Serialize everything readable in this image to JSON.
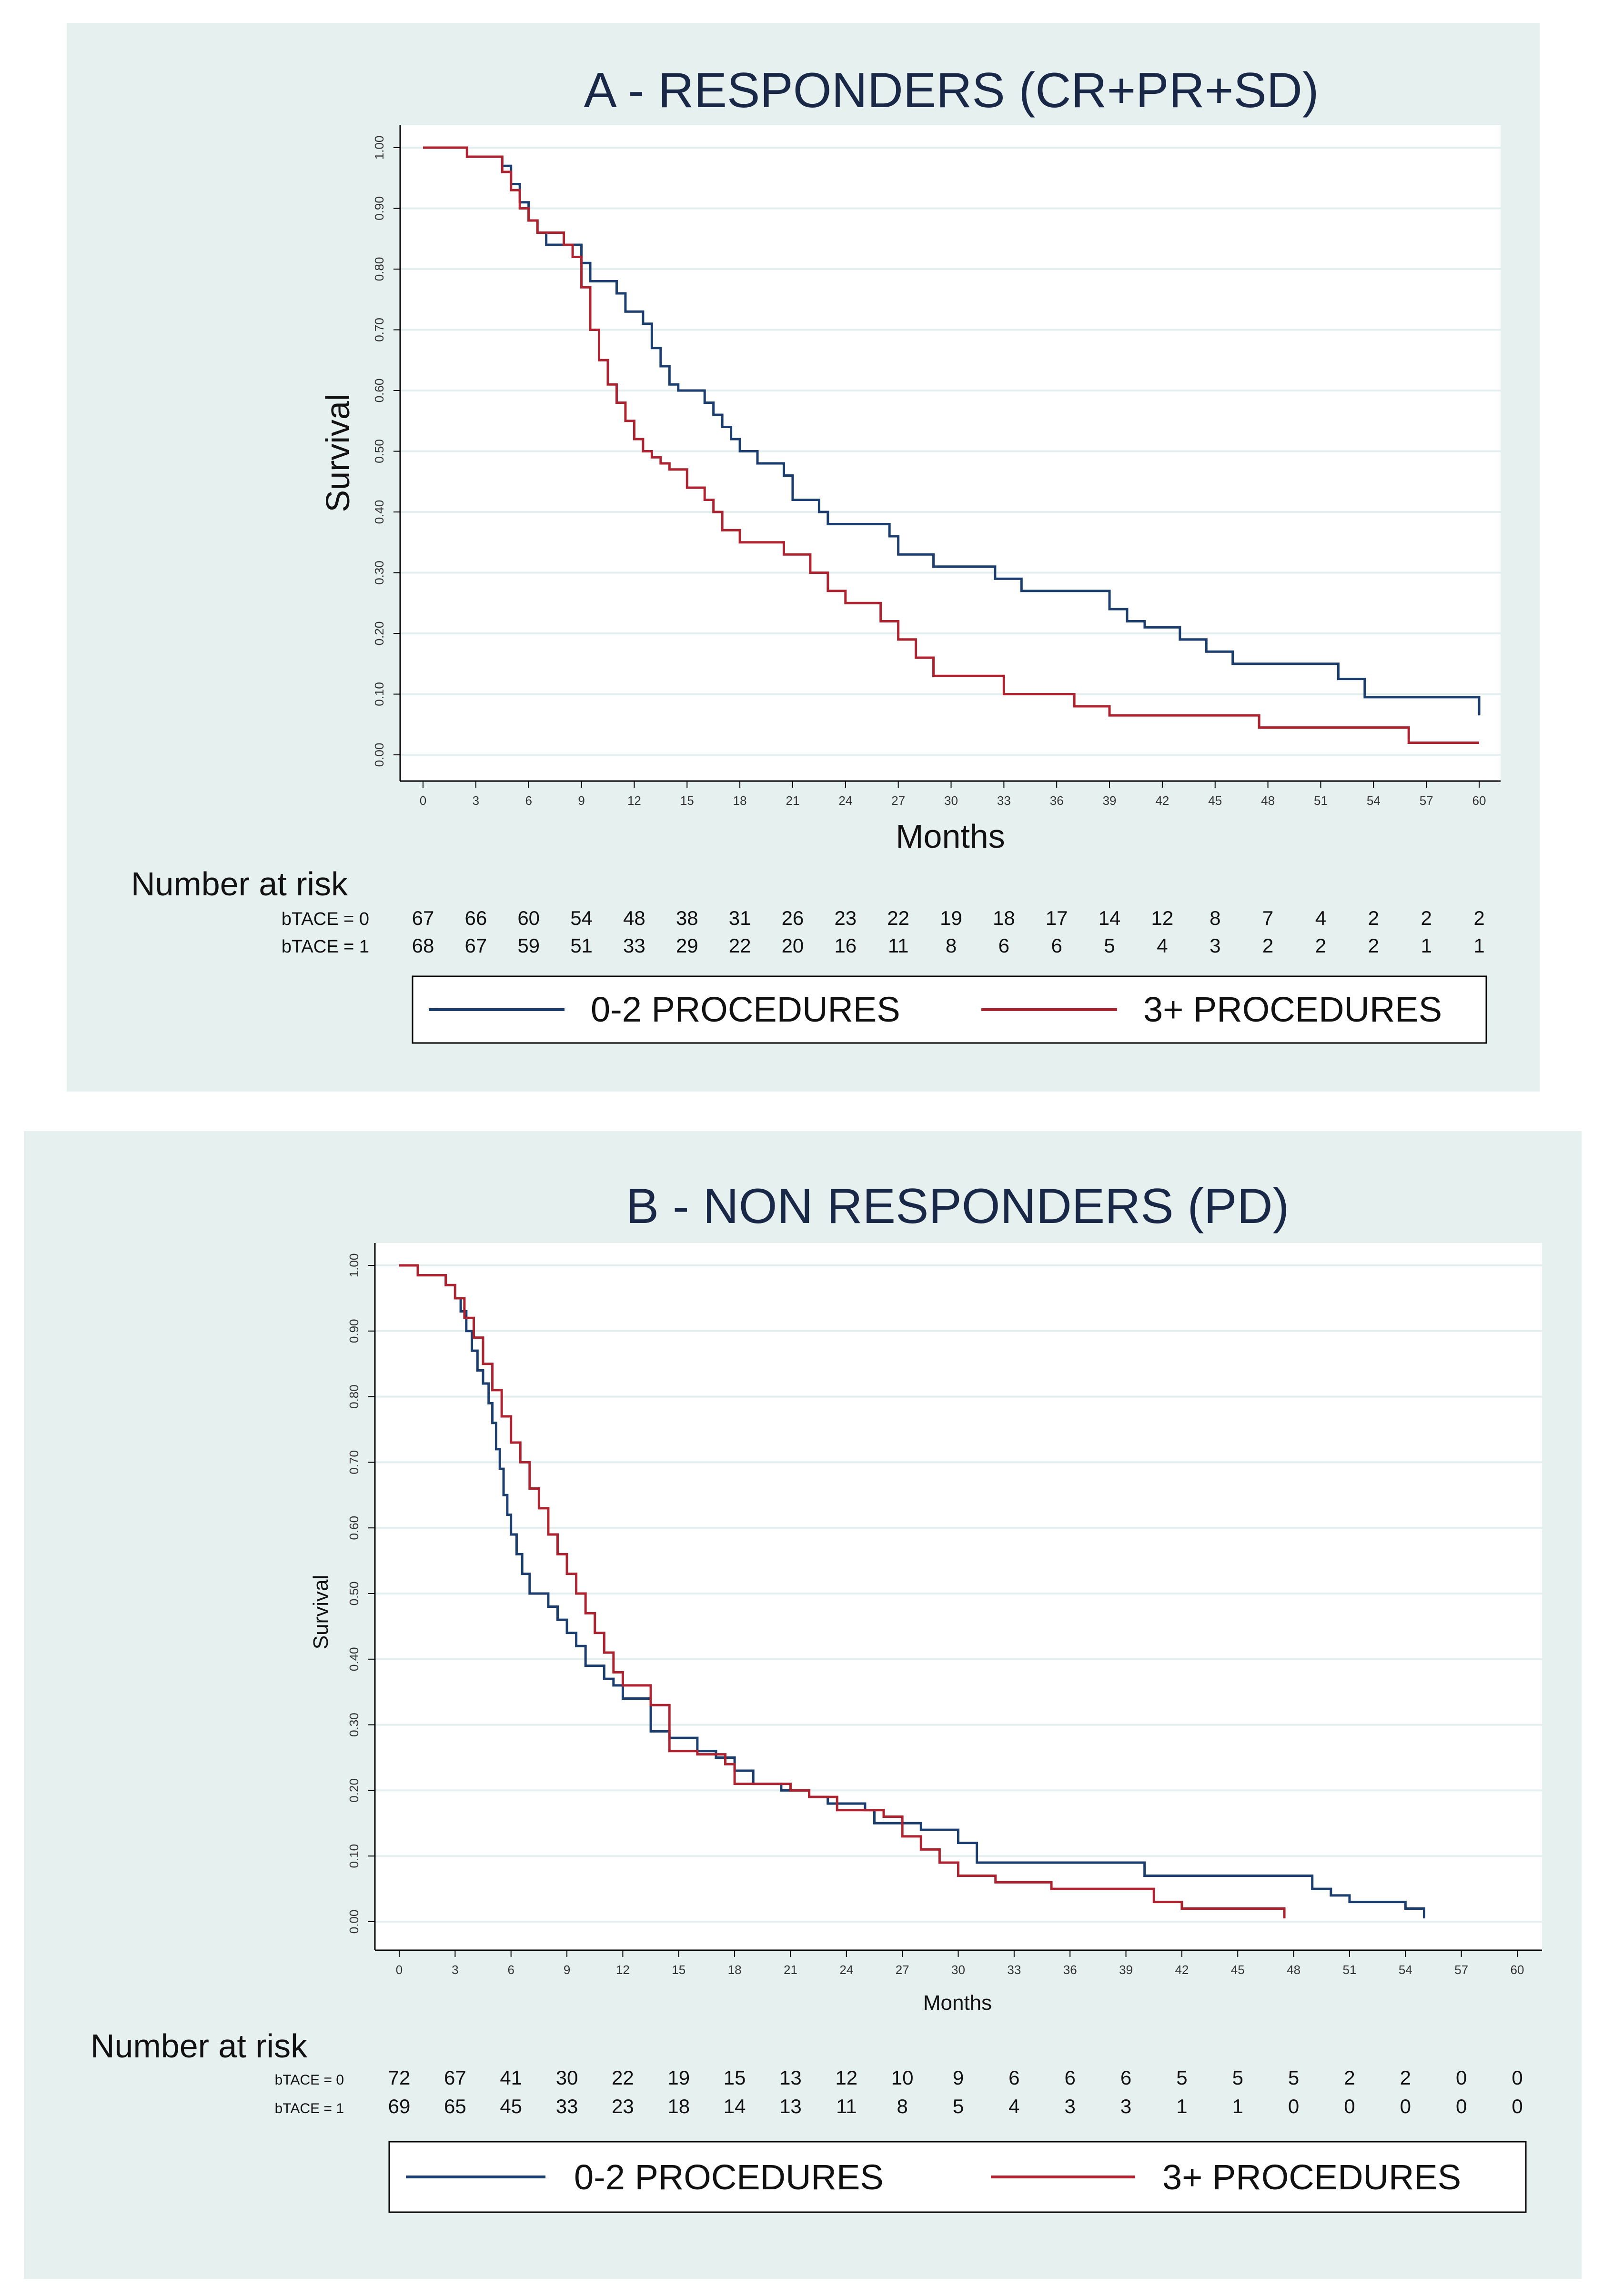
{
  "colors": {
    "panel_bg": "#e6f0ef",
    "plot_bg": "#ffffff",
    "grid": "#e3eeee",
    "series_0_2": "#1b3e6e",
    "series_3plus": "#ad2330"
  },
  "chart_data": [
    {
      "type": "line",
      "step": true,
      "title": "A - RESPONDERS (CR+PR+SD)",
      "xlabel": "Months",
      "ylabel": "Survival",
      "xlim": [
        0,
        60
      ],
      "ylim": [
        0,
        1
      ],
      "xticks": [
        "0",
        "3",
        "6",
        "9",
        "12",
        "15",
        "18",
        "21",
        "24",
        "27",
        "30",
        "33",
        "36",
        "39",
        "42",
        "45",
        "48",
        "51",
        "54",
        "57",
        "60"
      ],
      "yticks": [
        "0.00",
        "0.10",
        "0.20",
        "0.30",
        "0.40",
        "0.50",
        "0.60",
        "0.70",
        "0.80",
        "0.90",
        "1.00"
      ],
      "series": [
        {
          "name": "0-2 PROCEDURES",
          "color": "#1b3e6e",
          "x": [
            0,
            2.5,
            4.5,
            5,
            5.5,
            6,
            6.5,
            7,
            9,
            9.5,
            11,
            11.5,
            12.5,
            13,
            13.5,
            14,
            14.5,
            16,
            16.5,
            17,
            17.5,
            18,
            19,
            20.5,
            21,
            22.5,
            23,
            26.5,
            27,
            29,
            32.5,
            34,
            39,
            40,
            41,
            43,
            44.5,
            46,
            52,
            53.5,
            60
          ],
          "y": [
            1.0,
            0.985,
            0.97,
            0.94,
            0.91,
            0.88,
            0.86,
            0.84,
            0.81,
            0.78,
            0.76,
            0.73,
            0.71,
            0.67,
            0.64,
            0.61,
            0.6,
            0.58,
            0.56,
            0.54,
            0.52,
            0.5,
            0.48,
            0.46,
            0.42,
            0.4,
            0.38,
            0.36,
            0.33,
            0.31,
            0.29,
            0.27,
            0.24,
            0.22,
            0.21,
            0.19,
            0.17,
            0.15,
            0.125,
            0.095,
            0.065
          ]
        },
        {
          "name": "3+ PROCEDURES",
          "color": "#ad2330",
          "x": [
            0,
            2.5,
            4.5,
            5,
            5.5,
            6,
            6.5,
            8,
            8.5,
            9,
            9.5,
            10,
            10.5,
            11,
            11.5,
            12,
            12.5,
            13,
            13.5,
            14,
            15,
            16,
            16.5,
            17,
            18,
            20.5,
            22,
            23,
            24,
            26,
            27,
            28,
            29,
            33,
            37,
            39,
            47.5,
            56,
            60
          ],
          "y": [
            1.0,
            0.985,
            0.96,
            0.93,
            0.9,
            0.88,
            0.86,
            0.84,
            0.82,
            0.77,
            0.7,
            0.65,
            0.61,
            0.58,
            0.55,
            0.52,
            0.5,
            0.49,
            0.48,
            0.47,
            0.44,
            0.42,
            0.4,
            0.37,
            0.35,
            0.33,
            0.3,
            0.27,
            0.25,
            0.22,
            0.19,
            0.16,
            0.13,
            0.1,
            0.08,
            0.065,
            0.045,
            0.02,
            0.02
          ]
        }
      ],
      "number_at_risk": {
        "header": "Number at risk",
        "rows": [
          {
            "label": "bTACE = 0",
            "values": [
              "67",
              "66",
              "60",
              "54",
              "48",
              "38",
              "31",
              "26",
              "23",
              "22",
              "19",
              "18",
              "17",
              "14",
              "12",
              "8",
              "7",
              "4",
              "2",
              "2",
              "2"
            ]
          },
          {
            "label": "bTACE = 1",
            "values": [
              "68",
              "67",
              "59",
              "51",
              "33",
              "29",
              "22",
              "20",
              "16",
              "11",
              "8",
              "6",
              "6",
              "5",
              "4",
              "3",
              "2",
              "2",
              "2",
              "1",
              "1"
            ]
          }
        ]
      },
      "legend": [
        {
          "label": "0-2 PROCEDURES",
          "color": "#1b3e6e"
        },
        {
          "label": "3+ PROCEDURES",
          "color": "#ad2330"
        }
      ]
    },
    {
      "type": "line",
      "step": true,
      "title": "B - NON RESPONDERS (PD)",
      "xlabel": "Months",
      "ylabel": "Survival",
      "xlim": [
        0,
        60
      ],
      "ylim": [
        0,
        1
      ],
      "xticks": [
        "0",
        "3",
        "6",
        "9",
        "12",
        "15",
        "18",
        "21",
        "24",
        "27",
        "30",
        "33",
        "36",
        "39",
        "42",
        "45",
        "48",
        "51",
        "54",
        "57",
        "60"
      ],
      "yticks": [
        "0.00",
        "0.10",
        "0.20",
        "0.30",
        "0.40",
        "0.50",
        "0.60",
        "0.70",
        "0.80",
        "0.90",
        "1.00"
      ],
      "series": [
        {
          "name": "0-2 PROCEDURES",
          "color": "#1b3e6e",
          "x": [
            0,
            1,
            2.5,
            3,
            3.3,
            3.6,
            3.9,
            4.2,
            4.5,
            4.8,
            5,
            5.2,
            5.4,
            5.6,
            5.8,
            6,
            6.3,
            6.6,
            7,
            8,
            8.5,
            9,
            9.5,
            10,
            11,
            11.5,
            12,
            13.5,
            14.5,
            16,
            17,
            18,
            19,
            20.5,
            22,
            23,
            25,
            25.5,
            28,
            30,
            31,
            40,
            49,
            50,
            51,
            54,
            55
          ],
          "y": [
            1.0,
            0.985,
            0.97,
            0.95,
            0.93,
            0.9,
            0.87,
            0.84,
            0.82,
            0.79,
            0.76,
            0.72,
            0.69,
            0.65,
            0.62,
            0.59,
            0.56,
            0.53,
            0.5,
            0.48,
            0.46,
            0.44,
            0.42,
            0.39,
            0.37,
            0.36,
            0.34,
            0.29,
            0.28,
            0.26,
            0.25,
            0.23,
            0.21,
            0.2,
            0.19,
            0.18,
            0.17,
            0.15,
            0.14,
            0.12,
            0.09,
            0.07,
            0.05,
            0.04,
            0.03,
            0.02,
            0.005
          ]
        },
        {
          "name": "3+ PROCEDURES",
          "color": "#ad2330",
          "x": [
            0,
            1,
            2.5,
            3,
            3.5,
            4,
            4.5,
            5,
            5.5,
            6,
            6.5,
            7,
            7.5,
            8,
            8.5,
            9,
            9.5,
            10,
            10.5,
            11,
            11.5,
            12,
            13.5,
            14.5,
            16,
            17.5,
            18,
            21,
            22,
            23.5,
            26,
            27,
            28,
            29,
            30,
            32,
            35,
            40.5,
            42,
            47.5
          ],
          "y": [
            1.0,
            0.985,
            0.97,
            0.95,
            0.92,
            0.89,
            0.85,
            0.81,
            0.77,
            0.73,
            0.7,
            0.66,
            0.63,
            0.59,
            0.56,
            0.53,
            0.5,
            0.47,
            0.44,
            0.41,
            0.38,
            0.36,
            0.33,
            0.26,
            0.255,
            0.24,
            0.21,
            0.2,
            0.19,
            0.17,
            0.16,
            0.13,
            0.11,
            0.09,
            0.07,
            0.06,
            0.05,
            0.03,
            0.02,
            0.005
          ]
        }
      ],
      "number_at_risk": {
        "header": "Number at risk",
        "rows": [
          {
            "label": "bTACE = 0",
            "values": [
              "72",
              "67",
              "41",
              "30",
              "22",
              "19",
              "15",
              "13",
              "12",
              "10",
              "9",
              "6",
              "6",
              "6",
              "5",
              "5",
              "5",
              "2",
              "2",
              "0",
              "0"
            ]
          },
          {
            "label": "bTACE = 1",
            "values": [
              "69",
              "65",
              "45",
              "33",
              "23",
              "18",
              "14",
              "13",
              "11",
              "8",
              "5",
              "4",
              "3",
              "3",
              "1",
              "1",
              "0",
              "0",
              "0",
              "0",
              "0"
            ]
          }
        ]
      },
      "legend": [
        {
          "label": "0-2 PROCEDURES",
          "color": "#1b3e6e"
        },
        {
          "label": "3+ PROCEDURES",
          "color": "#ad2330"
        }
      ]
    }
  ]
}
